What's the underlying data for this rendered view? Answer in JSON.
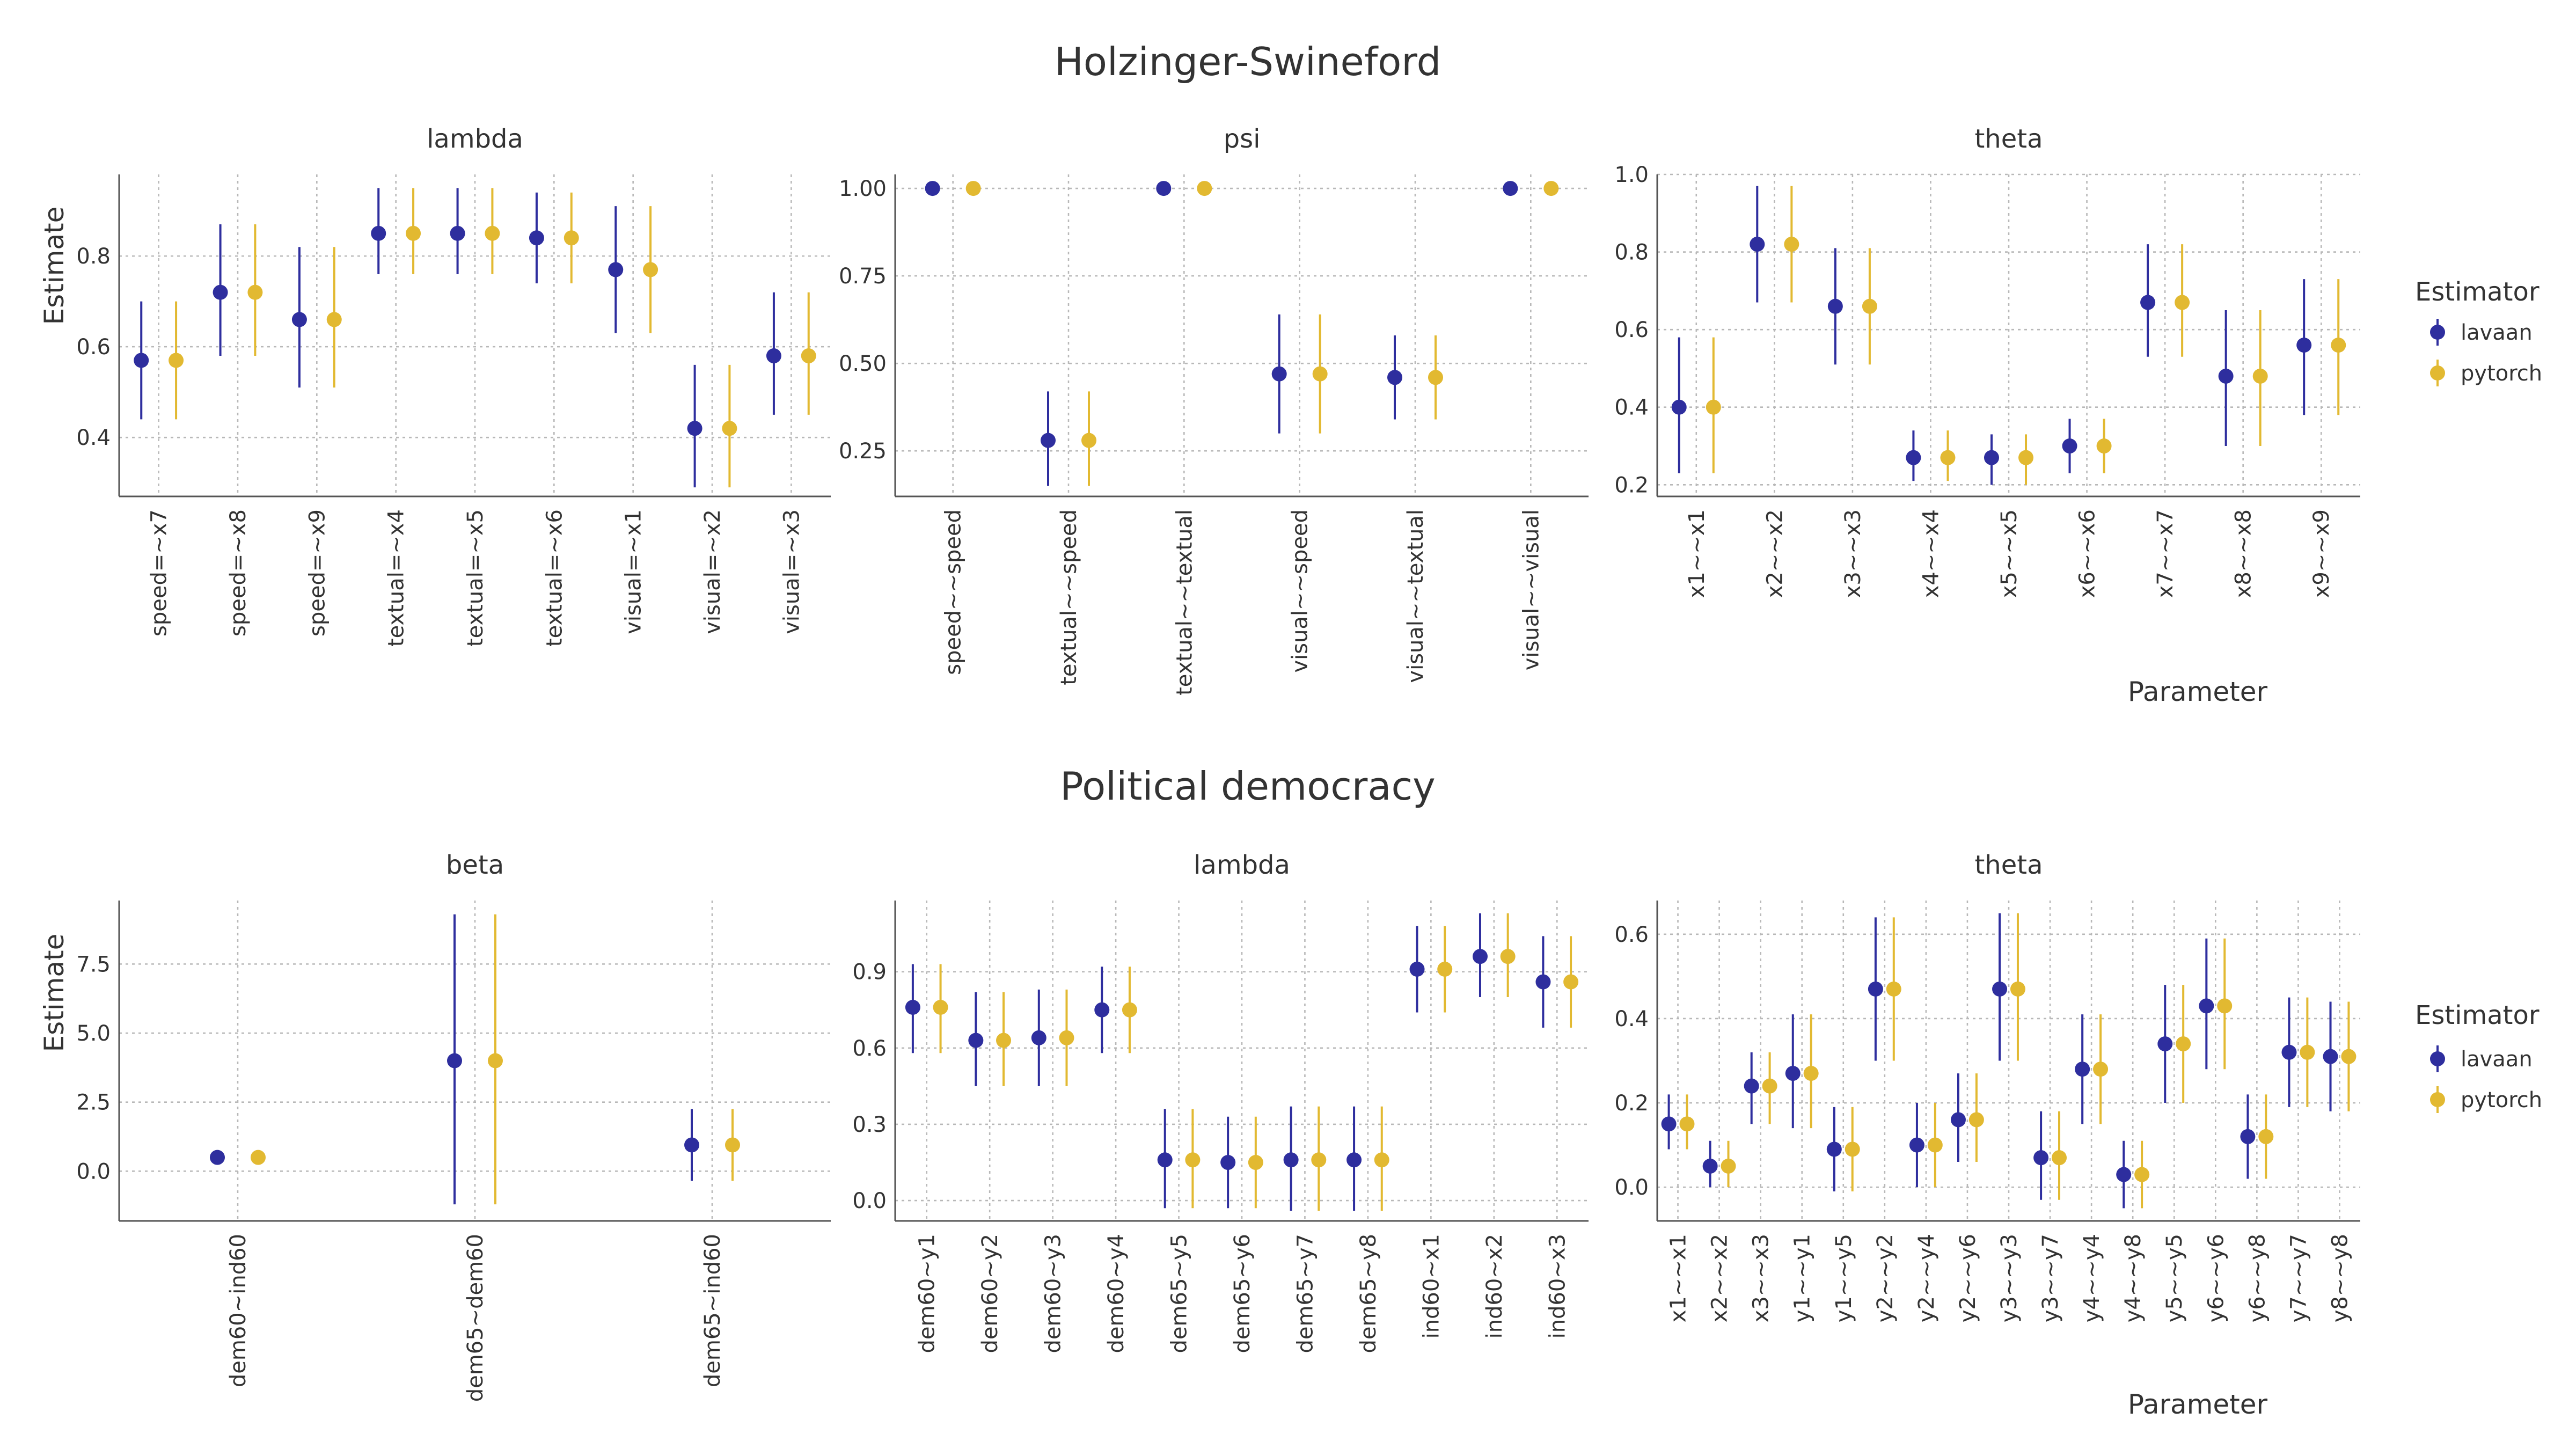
{
  "colors": {
    "lavaan": "#2e2e9e",
    "pytorch": "#e2b931",
    "text": "#333333",
    "grid": "#b8b8b8"
  },
  "sections": [
    {
      "title": "Holzinger-Swineford"
    },
    {
      "title": "Political democracy"
    }
  ],
  "axis_labels": {
    "y": "Estimate",
    "x": "Parameter"
  },
  "legend": {
    "title": "Estimator",
    "items": [
      "lavaan",
      "pytorch"
    ]
  },
  "chart_data": [
    {
      "type": "scatter",
      "section": "Holzinger-Swineford",
      "title": "lambda",
      "ylabel": "Estimate",
      "ylim": [
        0.27,
        0.98
      ],
      "yticks": [
        0.4,
        0.6,
        0.8
      ],
      "ytick_labels": [
        "0.4",
        "0.6",
        "0.8"
      ],
      "grid": true,
      "categories": [
        "speed=~x7",
        "speed=~x8",
        "speed=~x9",
        "textual=~x4",
        "textual=~x5",
        "textual=~x6",
        "visual=~x1",
        "visual=~x2",
        "visual=~x3"
      ],
      "series": [
        {
          "name": "lavaan",
          "values": [
            0.57,
            0.72,
            0.66,
            0.85,
            0.85,
            0.84,
            0.77,
            0.42,
            0.58
          ],
          "lower": [
            0.44,
            0.58,
            0.51,
            0.76,
            0.76,
            0.74,
            0.63,
            0.29,
            0.45
          ],
          "upper": [
            0.7,
            0.87,
            0.82,
            0.95,
            0.95,
            0.94,
            0.91,
            0.56,
            0.72
          ]
        },
        {
          "name": "pytorch",
          "values": [
            0.57,
            0.72,
            0.66,
            0.85,
            0.85,
            0.84,
            0.77,
            0.42,
            0.58
          ],
          "lower": [
            0.44,
            0.58,
            0.51,
            0.76,
            0.76,
            0.74,
            0.63,
            0.29,
            0.45
          ],
          "upper": [
            0.7,
            0.87,
            0.82,
            0.95,
            0.95,
            0.94,
            0.91,
            0.56,
            0.72
          ]
        }
      ]
    },
    {
      "type": "scatter",
      "section": "Holzinger-Swineford",
      "title": "psi",
      "ylim": [
        0.12,
        1.04
      ],
      "yticks": [
        0.25,
        0.5,
        0.75,
        1.0
      ],
      "ytick_labels": [
        "0.25",
        "0.50",
        "0.75",
        "1.00"
      ],
      "grid": true,
      "categories": [
        "speed~~speed",
        "textual~~speed",
        "textual~~textual",
        "visual~~speed",
        "visual~~textual",
        "visual~~visual"
      ],
      "series": [
        {
          "name": "lavaan",
          "values": [
            1.0,
            0.28,
            1.0,
            0.47,
            0.46,
            1.0
          ],
          "lower": [
            null,
            0.15,
            null,
            0.3,
            0.34,
            null
          ],
          "upper": [
            null,
            0.42,
            null,
            0.64,
            0.58,
            null
          ]
        },
        {
          "name": "pytorch",
          "values": [
            1.0,
            0.28,
            1.0,
            0.47,
            0.46,
            1.0
          ],
          "lower": [
            null,
            0.15,
            null,
            0.3,
            0.34,
            null
          ],
          "upper": [
            null,
            0.42,
            null,
            0.64,
            0.58,
            null
          ]
        }
      ]
    },
    {
      "type": "scatter",
      "section": "Holzinger-Swineford",
      "title": "theta",
      "xlabel": "Parameter",
      "ylim": [
        0.17,
        1.0
      ],
      "yticks": [
        0.2,
        0.4,
        0.6,
        0.8,
        1.0
      ],
      "ytick_labels": [
        "0.2",
        "0.4",
        "0.6",
        "0.8",
        "1.0"
      ],
      "grid": true,
      "categories": [
        "x1~~x1",
        "x2~~x2",
        "x3~~x3",
        "x4~~x4",
        "x5~~x5",
        "x6~~x6",
        "x7~~x7",
        "x8~~x8",
        "x9~~x9"
      ],
      "series": [
        {
          "name": "lavaan",
          "values": [
            0.4,
            0.82,
            0.66,
            0.27,
            0.27,
            0.3,
            0.67,
            0.48,
            0.56
          ],
          "lower": [
            0.23,
            0.67,
            0.51,
            0.21,
            0.2,
            0.23,
            0.53,
            0.3,
            0.38
          ],
          "upper": [
            0.58,
            0.97,
            0.81,
            0.34,
            0.33,
            0.37,
            0.82,
            0.65,
            0.73
          ]
        },
        {
          "name": "pytorch",
          "values": [
            0.4,
            0.82,
            0.66,
            0.27,
            0.27,
            0.3,
            0.67,
            0.48,
            0.56
          ],
          "lower": [
            0.23,
            0.67,
            0.51,
            0.21,
            0.2,
            0.23,
            0.53,
            0.3,
            0.38
          ],
          "upper": [
            0.58,
            0.97,
            0.81,
            0.34,
            0.33,
            0.37,
            0.82,
            0.65,
            0.73
          ]
        }
      ]
    },
    {
      "type": "scatter",
      "section": "Political democracy",
      "title": "beta",
      "ylabel": "Estimate",
      "ylim": [
        -1.8,
        9.8
      ],
      "yticks": [
        0,
        2.5,
        5,
        7.5
      ],
      "ytick_labels": [
        "0.0",
        "2.5",
        "5.0",
        "7.5"
      ],
      "grid": true,
      "categories": [
        "dem60~ind60",
        "dem65~dem60",
        "dem65~ind60"
      ],
      "series": [
        {
          "name": "lavaan",
          "values": [
            0.5,
            4.0,
            0.95
          ],
          "lower": [
            null,
            -1.2,
            -0.35
          ],
          "upper": [
            null,
            9.3,
            2.25
          ]
        },
        {
          "name": "pytorch",
          "values": [
            0.5,
            4.0,
            0.95
          ],
          "lower": [
            null,
            -1.2,
            -0.35
          ],
          "upper": [
            null,
            9.3,
            2.25
          ]
        }
      ]
    },
    {
      "type": "scatter",
      "section": "Political democracy",
      "title": "lambda",
      "ylim": [
        -0.08,
        1.18
      ],
      "yticks": [
        0.0,
        0.3,
        0.6,
        0.9
      ],
      "ytick_labels": [
        "0.0",
        "0.3",
        "0.6",
        "0.9"
      ],
      "grid": true,
      "categories": [
        "dem60~y1",
        "dem60~y2",
        "dem60~y3",
        "dem60~y4",
        "dem65~y5",
        "dem65~y6",
        "dem65~y7",
        "dem65~y8",
        "ind60~x1",
        "ind60~x2",
        "ind60~x3"
      ],
      "series": [
        {
          "name": "lavaan",
          "values": [
            0.76,
            0.63,
            0.64,
            0.75,
            0.16,
            0.15,
            0.16,
            0.16,
            0.91,
            0.96,
            0.86
          ],
          "lower": [
            0.58,
            0.45,
            0.45,
            0.58,
            -0.03,
            -0.03,
            -0.04,
            -0.04,
            0.74,
            0.8,
            0.68
          ],
          "upper": [
            0.93,
            0.82,
            0.83,
            0.92,
            0.36,
            0.33,
            0.37,
            0.37,
            1.08,
            1.13,
            1.04
          ]
        },
        {
          "name": "pytorch",
          "values": [
            0.76,
            0.63,
            0.64,
            0.75,
            0.16,
            0.15,
            0.16,
            0.16,
            0.91,
            0.96,
            0.86
          ],
          "lower": [
            0.58,
            0.45,
            0.45,
            0.58,
            -0.03,
            -0.03,
            -0.04,
            -0.04,
            0.74,
            0.8,
            0.68
          ],
          "upper": [
            0.93,
            0.82,
            0.83,
            0.92,
            0.36,
            0.33,
            0.37,
            0.37,
            1.08,
            1.13,
            1.04
          ]
        }
      ]
    },
    {
      "type": "scatter",
      "section": "Political democracy",
      "title": "theta",
      "xlabel": "Parameter",
      "ylim": [
        -0.08,
        0.68
      ],
      "yticks": [
        0.0,
        0.2,
        0.4,
        0.6
      ],
      "ytick_labels": [
        "0.0",
        "0.2",
        "0.4",
        "0.6"
      ],
      "grid": true,
      "categories": [
        "x1~~x1",
        "x2~~x2",
        "x3~~x3",
        "y1~~y1",
        "y1~~y5",
        "y2~~y2",
        "y2~~y4",
        "y2~~y6",
        "y3~~y3",
        "y3~~y7",
        "y4~~y4",
        "y4~~y8",
        "y5~~y5",
        "y6~~y6",
        "y6~~y8",
        "y7~~y7",
        "y8~~y8"
      ],
      "series": [
        {
          "name": "lavaan",
          "values": [
            0.15,
            0.05,
            0.24,
            0.27,
            0.09,
            0.47,
            0.1,
            0.16,
            0.47,
            0.07,
            0.28,
            0.03,
            0.34,
            0.43,
            0.12,
            0.32,
            0.31
          ],
          "lower": [
            0.09,
            0.0,
            0.15,
            0.14,
            -0.01,
            0.3,
            0.0,
            0.06,
            0.3,
            -0.03,
            0.15,
            -0.05,
            0.2,
            0.28,
            0.02,
            0.19,
            0.18
          ],
          "upper": [
            0.22,
            0.11,
            0.32,
            0.41,
            0.19,
            0.64,
            0.2,
            0.27,
            0.65,
            0.18,
            0.41,
            0.11,
            0.48,
            0.59,
            0.22,
            0.45,
            0.44
          ]
        },
        {
          "name": "pytorch",
          "values": [
            0.15,
            0.05,
            0.24,
            0.27,
            0.09,
            0.47,
            0.1,
            0.16,
            0.47,
            0.07,
            0.28,
            0.03,
            0.34,
            0.43,
            0.12,
            0.32,
            0.31
          ],
          "lower": [
            0.09,
            0.0,
            0.15,
            0.14,
            -0.01,
            0.3,
            0.0,
            0.06,
            0.3,
            -0.03,
            0.15,
            -0.05,
            0.2,
            0.28,
            0.02,
            0.19,
            0.18
          ],
          "upper": [
            0.22,
            0.11,
            0.32,
            0.41,
            0.19,
            0.64,
            0.2,
            0.27,
            0.65,
            0.18,
            0.41,
            0.11,
            0.48,
            0.59,
            0.22,
            0.45,
            0.44
          ]
        }
      ]
    }
  ]
}
